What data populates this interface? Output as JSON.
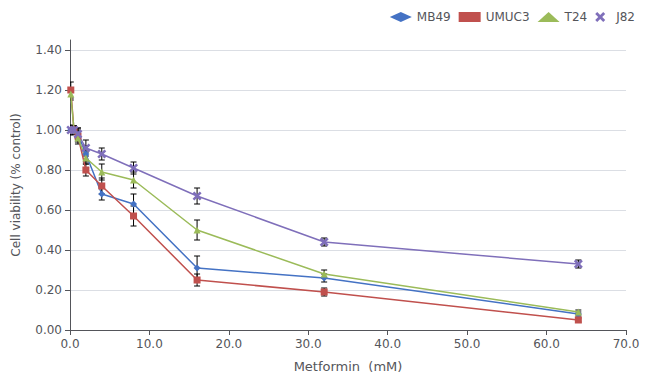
{
  "chart_data": {
    "type": "line",
    "x": [
      0.1,
      0.5,
      1.0,
      2.0,
      4.0,
      8.0,
      16.0,
      32.0,
      64.0
    ],
    "series": [
      {
        "name": "MB49",
        "color": "#4472C4",
        "marker": "diamond",
        "values": [
          1.0,
          1.0,
          0.98,
          0.88,
          0.68,
          0.63,
          0.31,
          0.26,
          0.08
        ],
        "yerr": [
          0.025,
          0.02,
          0.03,
          0.04,
          0.03,
          0.05,
          0.06,
          0.02,
          0.01
        ]
      },
      {
        "name": "UMUC3",
        "color": "#C0504D",
        "marker": "square",
        "values": [
          1.2,
          1.0,
          0.97,
          0.8,
          0.72,
          0.57,
          0.25,
          0.19,
          0.05
        ],
        "yerr": [
          0.04,
          0.02,
          0.03,
          0.03,
          0.04,
          0.05,
          0.03,
          0.02,
          0.01
        ]
      },
      {
        "name": "T24",
        "color": "#9BBB59",
        "marker": "triangle",
        "values": [
          1.18,
          1.0,
          0.96,
          0.86,
          0.79,
          0.75,
          0.5,
          0.28,
          0.09
        ],
        "yerr": [
          0.03,
          0.02,
          0.03,
          0.03,
          0.04,
          0.04,
          0.05,
          0.02,
          0.01
        ]
      },
      {
        "name": "J82",
        "color": "#7F6FBA",
        "marker": "x",
        "values": [
          1.0,
          1.0,
          0.98,
          0.91,
          0.88,
          0.81,
          0.67,
          0.44,
          0.33
        ],
        "yerr": [
          0.02,
          0.02,
          0.03,
          0.04,
          0.03,
          0.03,
          0.04,
          0.02,
          0.02
        ]
      }
    ],
    "xlabel": "Metformin  (mM)",
    "ylabel": "Cell viability (% control)",
    "xlim": [
      0,
      70
    ],
    "ylim": [
      0.0,
      1.45
    ],
    "xticks": [
      {
        "value": 0,
        "label": "0.0"
      },
      {
        "value": 10,
        "label": "10.0"
      },
      {
        "value": 20,
        "label": "20.0"
      },
      {
        "value": 30,
        "label": "30.0"
      },
      {
        "value": 40,
        "label": "40.0"
      },
      {
        "value": 50,
        "label": "50.0"
      },
      {
        "value": 60,
        "label": "60.0"
      },
      {
        "value": 70,
        "label": "70.0"
      }
    ],
    "yticks": [
      {
        "value": 0.0,
        "label": "0.00"
      },
      {
        "value": 0.2,
        "label": "0.20"
      },
      {
        "value": 0.4,
        "label": "0.40"
      },
      {
        "value": 0.6,
        "label": "0.60"
      },
      {
        "value": 0.8,
        "label": "0.80"
      },
      {
        "value": 1.0,
        "label": "1.00"
      },
      {
        "value": 1.2,
        "label": "1.20"
      },
      {
        "value": 1.4,
        "label": "1.40"
      }
    ],
    "grid": true,
    "legend": "upper right"
  }
}
